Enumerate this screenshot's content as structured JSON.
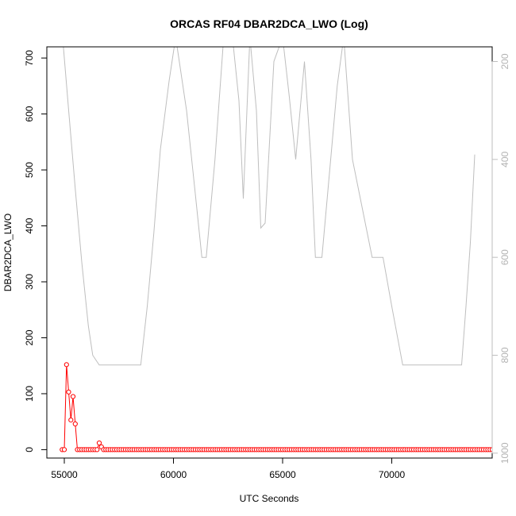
{
  "chart_data": {
    "type": "line",
    "title": "ORCAS RF04 DBAR2DCA_LWO (Log)",
    "xlabel": "UTC Seconds",
    "ylabel": "DBAR2DCA_LWO",
    "xlim": [
      54200,
      74600
    ],
    "ylim": [
      -15,
      720
    ],
    "x_ticks": [
      55000,
      60000,
      65000,
      70000
    ],
    "y_ticks": [
      0,
      100,
      200,
      300,
      400,
      500,
      600,
      700
    ],
    "right_axis": {
      "ylim": [
        1010,
        170
      ],
      "reversed": true,
      "ticks": [
        200,
        400,
        600,
        800,
        1000
      ],
      "color": "#bebebe"
    },
    "grid": false,
    "legend": "none",
    "series": [
      {
        "color": "#ff0000",
        "style": "line-with-open-circles",
        "x_start": 54900,
        "x_step": 100,
        "values": [
          0,
          0,
          152,
          103,
          53,
          95,
          46,
          0,
          0,
          0,
          0,
          0,
          0,
          0,
          0,
          0,
          0,
          12,
          5,
          0,
          0,
          0,
          0,
          0,
          0,
          0,
          0,
          0,
          0,
          0,
          0,
          0,
          0,
          0,
          0,
          0,
          0,
          0,
          0,
          0,
          0,
          0,
          0,
          0,
          0,
          0,
          0,
          0,
          0,
          0,
          0,
          0,
          0,
          0,
          0,
          0,
          0,
          0,
          0,
          0,
          0,
          0,
          0,
          0,
          0,
          0,
          0,
          0,
          0,
          0,
          0,
          0,
          0,
          0,
          0,
          0,
          0,
          0,
          0,
          0,
          0,
          0,
          0,
          0,
          0,
          0,
          0,
          0,
          0,
          0,
          0,
          0,
          0,
          0,
          0,
          0,
          0,
          0,
          0,
          0,
          0,
          0,
          0,
          0,
          0,
          0,
          0,
          0,
          0,
          0,
          0,
          0,
          0,
          0,
          0,
          0,
          0,
          0,
          0,
          0,
          0,
          0,
          0,
          0,
          0,
          0,
          0,
          0,
          0,
          0,
          0,
          0,
          0,
          0,
          0,
          0,
          0,
          0,
          0,
          0,
          0,
          0,
          0,
          0,
          0,
          0,
          0,
          0,
          0,
          0,
          0,
          0,
          0,
          0,
          0,
          0,
          0,
          0,
          0,
          0,
          0,
          0,
          0,
          0,
          0,
          0,
          0,
          0,
          0,
          0,
          0,
          0,
          0,
          0,
          0,
          0,
          0,
          0,
          0,
          0,
          0,
          0,
          0,
          0,
          0,
          0,
          0,
          0,
          0,
          0,
          0,
          0,
          0,
          0,
          0,
          0,
          0,
          0,
          0,
          0,
          0,
          0,
          0,
          0,
          0,
          0,
          0,
          0,
          0,
          0,
          0,
          0,
          0,
          0,
          0,
          0,
          0,
          0,
          0,
          0,
          0,
          0,
          0,
          0,
          0,
          0,
          0,
          0,
          0,
          0,
          0,
          0,
          0,
          0,
          0,
          0,
          0,
          0,
          0,
          0,
          0,
          0,
          0,
          0,
          0,
          0,
          0,
          0,
          0,
          0,
          0,
          0,
          0,
          0,
          0,
          0,
          0,
          0,
          0,
          0,
          0,
          0,
          0,
          0,
          0,
          0,
          0,
          0,
          0,
          0,
          0,
          0,
          0,
          0,
          0,
          0,
          0,
          0,
          0,
          0,
          0,
          0,
          0,
          0,
          0,
          0,
          0,
          0,
          0,
          0,
          0,
          0,
          0,
          0,
          0,
          0,
          0,
          0,
          0,
          0,
          0,
          0,
          0
        ]
      },
      {
        "axis": "right",
        "color": "#bebebe",
        "style": "line",
        "x": [
          54900,
          55200,
          55500,
          55800,
          56100,
          56300,
          56600,
          57500,
          58500,
          58800,
          59100,
          59400,
          59800,
          60100,
          60600,
          61000,
          61300,
          61500,
          61900,
          62300,
          62700,
          63000,
          63200,
          63500,
          63800,
          64000,
          64200,
          64600,
          65000,
          65300,
          65600,
          66000,
          66300,
          66500,
          66800,
          67100,
          67500,
          67800,
          68200,
          69100,
          69400,
          69600,
          70000,
          70500,
          71000,
          72000,
          73200,
          73400,
          73600,
          73800
        ],
        "values": [
          140,
          300,
          460,
          610,
          740,
          800,
          820,
          820,
          820,
          700,
          550,
          380,
          240,
          150,
          300,
          470,
          600,
          600,
          400,
          150,
          150,
          280,
          480,
          150,
          300,
          540,
          530,
          200,
          150,
          270,
          400,
          200,
          400,
          600,
          600,
          450,
          250,
          150,
          400,
          600,
          600,
          600,
          700,
          820,
          820,
          820,
          820,
          700,
          570,
          390
        ]
      }
    ]
  }
}
